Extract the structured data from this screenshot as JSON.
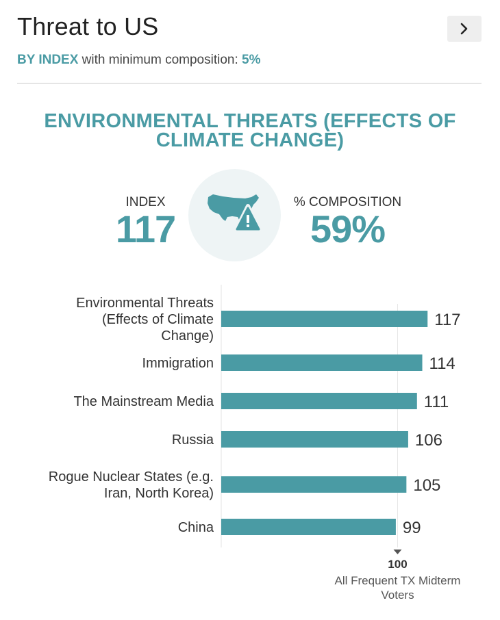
{
  "header": {
    "title": "Threat to US",
    "subtitle_mode": "BY INDEX",
    "subtitle_text": " with minimum composition: ",
    "subtitle_min": "5%",
    "next_icon": "chevron-right-icon"
  },
  "summary": {
    "heading": "ENVIRONMENTAL THREATS (EFFECTS OF CLIMATE CHANGE)",
    "index_label": "INDEX",
    "index_value": "117",
    "composition_label": "% COMPOSITION",
    "composition_value": "59%",
    "badge_icon": "us-map-warning-icon"
  },
  "colors": {
    "accent": "#4a9ba4",
    "bar": "#4a9ba4",
    "badge_bg": "#eef4f5"
  },
  "chart_data": {
    "type": "bar",
    "orientation": "horizontal",
    "categories": [
      [
        "Environmental Threats",
        "(Effects of Climate",
        "Change)"
      ],
      [
        "Immigration"
      ],
      [
        "The Mainstream Media"
      ],
      [
        "Russia"
      ],
      [
        "Rogue Nuclear States (e.g.",
        "Iran, North Korea)"
      ],
      [
        "China"
      ]
    ],
    "values": [
      117,
      114,
      111,
      106,
      105,
      99
    ],
    "xlim": [
      0,
      127
    ],
    "reference": {
      "value": 100,
      "label_value": "100",
      "label_lines": [
        "All Frequent TX Midterm",
        "Voters"
      ]
    }
  }
}
